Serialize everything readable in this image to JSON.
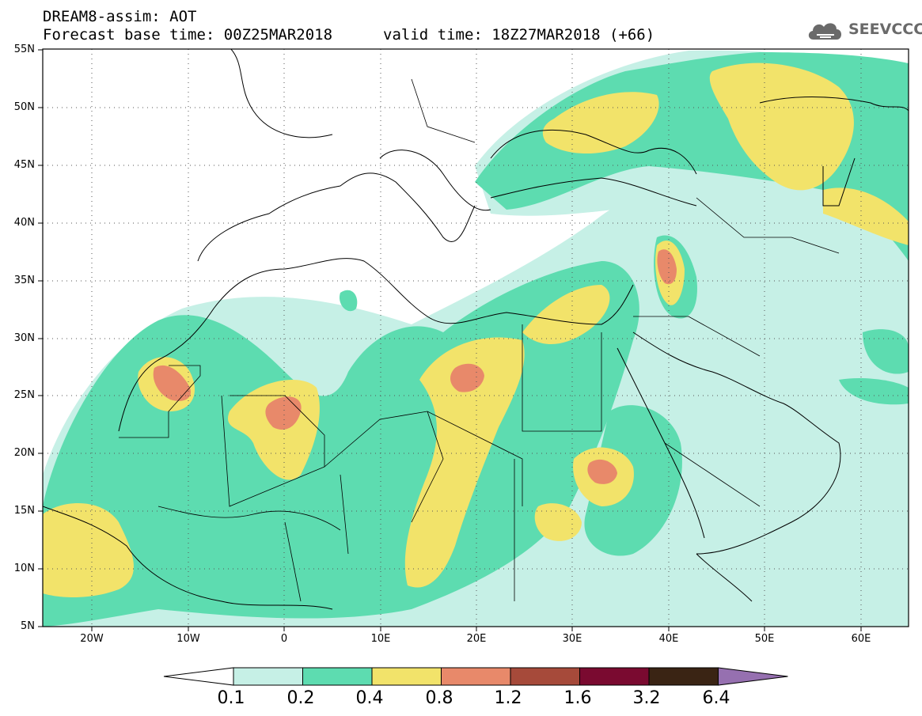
{
  "header": {
    "line1": "DREAM8-assim: AOT",
    "line2": "Forecast base time: 00Z25MAR2018",
    "line3": "valid time: 18Z27MAR2018 (+66)"
  },
  "logo": {
    "text": "SEEVCCC",
    "icon": "cloud-icon",
    "color": "#6a6a6a"
  },
  "map": {
    "lon_range": [
      -25,
      65
    ],
    "lat_range": [
      5,
      55
    ],
    "lon_ticks": [
      "20W",
      "10W",
      "0",
      "10E",
      "20E",
      "30E",
      "40E",
      "50E",
      "60E"
    ],
    "lat_ticks": [
      "55N",
      "50N",
      "45N",
      "40N",
      "35N",
      "30N",
      "25N",
      "20N",
      "15N",
      "10N",
      "5N"
    ],
    "grid": "dotted"
  },
  "colorbar": {
    "colors": [
      "#c6f0e6",
      "#5ddcb0",
      "#f2e36a",
      "#e8896a",
      "#a64a3a",
      "#7a0a30",
      "#3a2414",
      "#9670b0"
    ],
    "labels": [
      "0.1",
      "0.2",
      "0.4",
      "0.8",
      "1.2",
      "1.6",
      "3.2",
      "6.4"
    ]
  }
}
